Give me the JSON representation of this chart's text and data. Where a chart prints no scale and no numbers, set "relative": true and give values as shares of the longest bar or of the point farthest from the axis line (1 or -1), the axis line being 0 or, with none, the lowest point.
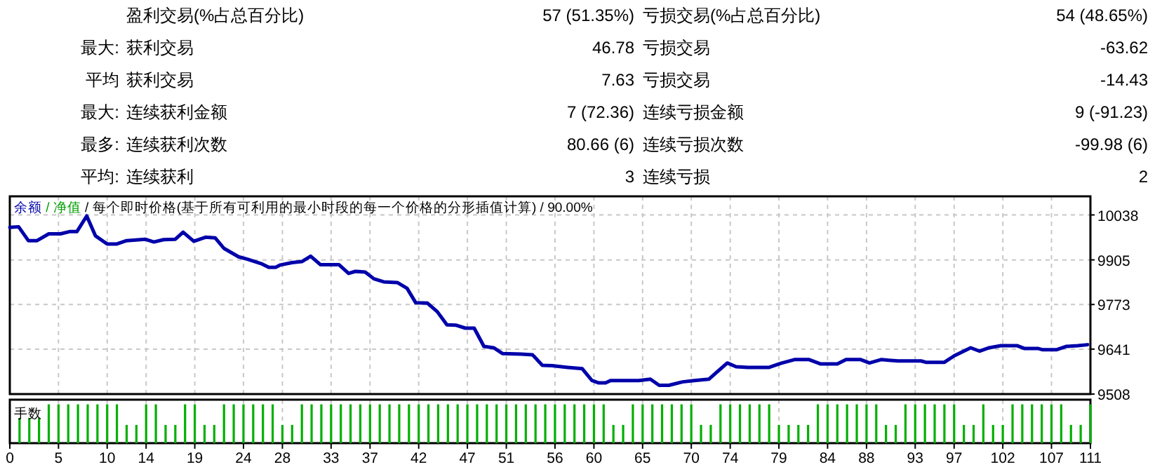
{
  "chart_data": [
    {
      "type": "other",
      "annotations": [
        "盈利交易(%占总百分比)",
        "57 (51.35%)",
        "亏损交易(%占总百分比)",
        "54 (48.65%)",
        "最大:",
        "获利交易",
        "46.78",
        "亏损交易",
        "-63.62",
        "平均",
        "获利交易",
        "7.63",
        "亏损交易",
        "-14.43",
        "最大:",
        "连续获利金额",
        "7 (72.36)",
        "连续亏损金额",
        "9 (-91.23)",
        "最多:",
        "连续获利次数",
        "80.66 (6)",
        "连续亏损次数",
        "-99.98 (6)",
        "平均:",
        "连续获利",
        "3",
        "连续亏损",
        "2"
      ]
    },
    {
      "type": "line",
      "title": "余额 / 净值 / 每个即时价格(基于所有可利用的最小时段的每一个价格的分形插值计算) / 90.00%",
      "x": [
        0,
        0.9,
        1.9,
        2.8,
        4.0,
        5.2,
        6.2,
        6.9,
        7.9,
        8.8,
        10.0,
        11.0,
        12.0,
        13.9,
        14.8,
        15.8,
        17.0,
        17.8,
        18.9,
        20.1,
        21.1,
        22.0,
        23.5,
        24.4,
        25.9,
        26.6,
        27.3,
        27.8,
        29.0,
        30.0,
        30.9,
        31.9,
        33.8,
        34.8,
        35.5,
        36.5,
        37.4,
        38.4,
        39.8,
        40.8,
        41.7,
        42.9,
        43.9,
        44.9,
        45.8,
        46.8,
        47.7,
        48.7,
        49.7,
        50.6,
        52.5,
        53.7,
        54.7,
        55.7,
        57.3,
        58.8,
        59.8,
        60.5,
        61.2,
        61.7,
        64.6,
        65.8,
        66.7,
        67.7,
        69.1,
        70.3,
        71.8,
        73.7,
        74.6,
        75.8,
        78.0,
        79.2,
        80.6,
        82.1,
        83.3,
        85.0,
        85.9,
        87.4,
        88.3,
        89.5,
        91.2,
        93.6,
        94.1,
        96.0,
        97.0,
        97.7,
        98.7,
        99.6,
        100.6,
        101.8,
        103.5,
        104.2,
        105.6,
        106.1,
        107.5,
        108.5,
        109.7,
        110.7
      ],
      "series": [
        {
          "color": "#0000aa",
          "values": [
            10001,
            10003,
            9962,
            9962,
            9982,
            9982,
            9989,
            9989,
            10035,
            9976,
            9952,
            9952,
            9962,
            9966,
            9958,
            9965,
            9966,
            9987,
            9960,
            9972,
            9970,
            9939,
            9914,
            9907,
            9893,
            9883,
            9883,
            9890,
            9897,
            9900,
            9916,
            9891,
            9891,
            9865,
            9871,
            9869,
            9849,
            9840,
            9838,
            9821,
            9778,
            9777,
            9752,
            9713,
            9712,
            9703,
            9703,
            9649,
            9645,
            9628,
            9626,
            9624,
            9593,
            9592,
            9587,
            9583,
            9548,
            9541,
            9541,
            9548,
            9548,
            9552,
            9534,
            9534,
            9544,
            9548,
            9552,
            9600,
            9589,
            9587,
            9587,
            9599,
            9610,
            9610,
            9597,
            9597,
            9610,
            9610,
            9600,
            9610,
            9606,
            9606,
            9602,
            9602,
            9621,
            9631,
            9645,
            9635,
            9645,
            9651,
            9651,
            9643,
            9643,
            9639,
            9639,
            9649,
            9651,
            9654
          ]
        }
      ],
      "xlim": [
        0,
        111
      ],
      "ylim": [
        9508,
        10093
      ],
      "yticks": [
        10038,
        9905,
        9773,
        9641,
        9508
      ],
      "xticks": [
        {
          "value": 0,
          "label": null
        },
        {
          "value": 5,
          "label": null
        },
        {
          "value": 10,
          "label": null
        },
        {
          "value": 14,
          "label": null
        },
        {
          "value": 19,
          "label": null
        },
        {
          "value": 24,
          "label": null
        },
        {
          "value": 28,
          "label": null
        },
        {
          "value": 33,
          "label": null
        },
        {
          "value": 37,
          "label": null
        },
        {
          "value": 42,
          "label": null
        },
        {
          "value": 47,
          "label": null
        },
        {
          "value": 51,
          "label": null
        },
        {
          "value": 56,
          "label": null
        },
        {
          "value": 60,
          "label": null
        },
        {
          "value": 65,
          "label": null
        },
        {
          "value": 70,
          "label": null
        },
        {
          "value": 74,
          "label": null
        },
        {
          "value": 79,
          "label": null
        },
        {
          "value": 84,
          "label": null
        },
        {
          "value": 88,
          "label": null
        },
        {
          "value": 93,
          "label": null
        },
        {
          "value": 97,
          "label": null
        },
        {
          "value": 102,
          "label": null
        },
        {
          "value": 107,
          "label": null
        },
        {
          "value": 111,
          "label": null
        }
      ],
      "tick_labels": "y",
      "grid": true
    },
    {
      "type": "bar",
      "title": "手数",
      "color": "#00b000",
      "relative": true,
      "x": [
        1,
        2,
        3,
        4,
        5,
        6,
        7,
        8,
        9,
        10,
        11,
        12,
        13,
        14,
        15,
        16,
        17,
        18,
        19,
        20,
        21,
        22,
        23,
        24,
        25,
        26,
        27,
        28,
        29,
        30,
        31,
        32,
        33,
        34,
        35,
        36,
        37,
        38,
        39,
        40,
        41,
        42,
        43,
        44,
        45,
        46,
        47,
        48,
        49,
        50,
        51,
        52,
        53,
        54,
        55,
        56,
        57,
        58,
        59,
        60,
        61,
        62,
        63,
        64,
        65,
        66,
        67,
        68,
        69,
        70,
        71,
        72,
        73,
        74,
        75,
        76,
        77,
        78,
        79,
        80,
        81,
        82,
        83,
        84,
        85,
        86,
        87,
        88,
        89,
        90,
        91,
        92,
        93,
        94,
        95,
        96,
        97,
        98,
        99,
        100,
        101,
        102,
        103,
        104,
        105,
        106,
        107,
        108,
        109,
        110,
        111
      ],
      "values": [
        0.65,
        0.65,
        0.65,
        1,
        1,
        1,
        1,
        1,
        1,
        1,
        1,
        0.47,
        0.47,
        1,
        1,
        0.47,
        0.47,
        1,
        1,
        0.47,
        0.47,
        1,
        1,
        1,
        1,
        1,
        1,
        0.47,
        0.47,
        1,
        1,
        1,
        1,
        1,
        1,
        1,
        1,
        1,
        1,
        1,
        1,
        1,
        1,
        1,
        1,
        1,
        1,
        1,
        1,
        1,
        1,
        1,
        1,
        1,
        1,
        1,
        1,
        1,
        1,
        1,
        1,
        0.47,
        0.47,
        1,
        1,
        1,
        1,
        1,
        1,
        1,
        0.47,
        0.47,
        1,
        1,
        1,
        1,
        1,
        1,
        0.47,
        0.47,
        0.47,
        0.47,
        1,
        1,
        1,
        1,
        1,
        1,
        1,
        0.47,
        0.47,
        1,
        1,
        1,
        1,
        1,
        1,
        0.47,
        0.47,
        1,
        0.47,
        0.47,
        1,
        1,
        1,
        1,
        1,
        1,
        0.47,
        0.47,
        1
      ],
      "xlim": [
        0,
        111
      ],
      "xticks": [
        0,
        5,
        10,
        14,
        19,
        24,
        28,
        33,
        37,
        42,
        47,
        51,
        56,
        60,
        65,
        70,
        74,
        79,
        84,
        88,
        93,
        97,
        102,
        107,
        111
      ],
      "tick_labels": "x",
      "grid": "x"
    }
  ]
}
